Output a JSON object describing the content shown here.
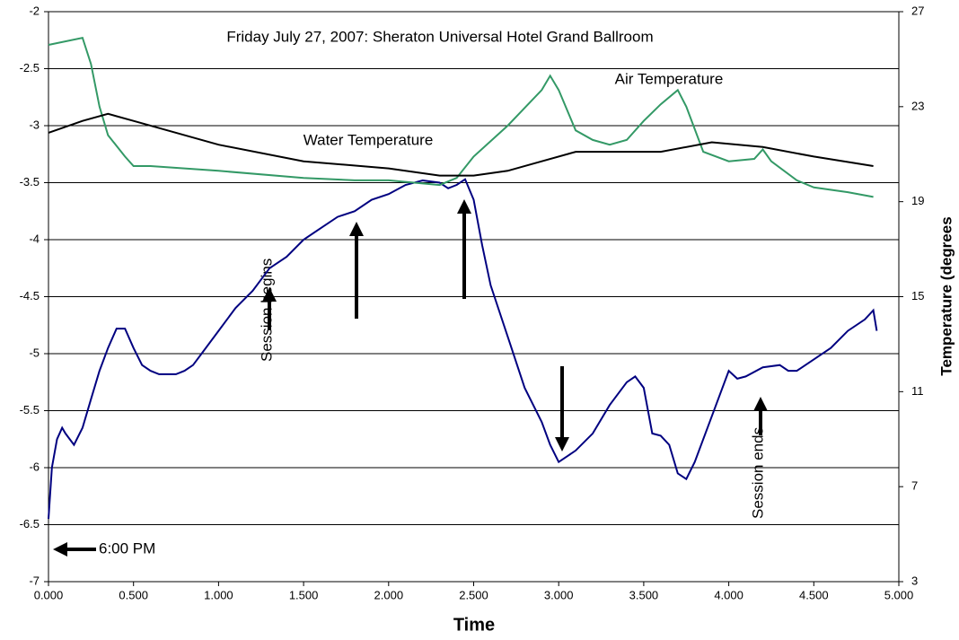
{
  "chart_data": {
    "type": "line",
    "title": "Friday July 27, 2007: Sheraton Universal Hotel Grand Ballroom",
    "x_label": "Time",
    "y2_label": "Temperature (degrees",
    "xlim": [
      0,
      5
    ],
    "xticks": [
      {
        "value": 0,
        "label": "0.000"
      },
      {
        "value": 0.5,
        "label": "0.500"
      },
      {
        "value": 1,
        "label": "1.000"
      },
      {
        "value": 1.5,
        "label": "1.500"
      },
      {
        "value": 2,
        "label": "2.000"
      },
      {
        "value": 2.5,
        "label": "2.500"
      },
      {
        "value": 3,
        "label": "3.000"
      },
      {
        "value": 3.5,
        "label": "3.500"
      },
      {
        "value": 4,
        "label": "4.000"
      },
      {
        "value": 4.5,
        "label": "4.500"
      },
      {
        "value": 5,
        "label": "5.000"
      }
    ],
    "ylim": [
      -7,
      -2
    ],
    "yticks": [
      -7,
      -6.5,
      -6,
      -5.5,
      -5,
      -4.5,
      -4,
      -3.5,
      -3,
      -2.5,
      -2
    ],
    "y2lim": [
      3,
      27
    ],
    "y2ticks": [
      3,
      7,
      11,
      15,
      19,
      23,
      27
    ],
    "grid": true,
    "annotations": [
      "Session begins",
      "Session ends",
      "6:00 PM"
    ],
    "series": [
      {
        "color": "#000080",
        "x": [
          0,
          0.02,
          0.05,
          0.08,
          0.1,
          0.15,
          0.2,
          0.25,
          0.3,
          0.35,
          0.4,
          0.45,
          0.5,
          0.55,
          0.6,
          0.65,
          0.7,
          0.75,
          0.8,
          0.85,
          0.9,
          1.0,
          1.1,
          1.2,
          1.3,
          1.4,
          1.5,
          1.6,
          1.7,
          1.8,
          1.9,
          2.0,
          2.1,
          2.2,
          2.3,
          2.35,
          2.4,
          2.45,
          2.5,
          2.55,
          2.6,
          2.7,
          2.8,
          2.9,
          2.95,
          3.0,
          3.05,
          3.1,
          3.2,
          3.3,
          3.4,
          3.45,
          3.5,
          3.55,
          3.6,
          3.65,
          3.7,
          3.75,
          3.8,
          3.9,
          4.0,
          4.05,
          4.1,
          4.2,
          4.3,
          4.35,
          4.4,
          4.5,
          4.6,
          4.7,
          4.8,
          4.85,
          4.87
        ],
        "values": [
          -6.45,
          -6.0,
          -5.75,
          -5.65,
          -5.7,
          -5.8,
          -5.65,
          -5.4,
          -5.15,
          -4.95,
          -4.78,
          -4.78,
          -4.95,
          -5.1,
          -5.15,
          -5.18,
          -5.18,
          -5.18,
          -5.15,
          -5.1,
          -5.0,
          -4.8,
          -4.6,
          -4.45,
          -4.25,
          -4.15,
          -4.0,
          -3.9,
          -3.8,
          -3.75,
          -3.65,
          -3.6,
          -3.52,
          -3.48,
          -3.5,
          -3.55,
          -3.52,
          -3.47,
          -3.65,
          -4.05,
          -4.4,
          -4.85,
          -5.3,
          -5.6,
          -5.8,
          -5.95,
          -5.9,
          -5.85,
          -5.7,
          -5.45,
          -5.25,
          -5.2,
          -5.3,
          -5.7,
          -5.72,
          -5.8,
          -6.05,
          -6.1,
          -5.95,
          -5.55,
          -5.15,
          -5.22,
          -5.2,
          -5.12,
          -5.1,
          -5.15,
          -5.15,
          -5.05,
          -4.95,
          -4.8,
          -4.7,
          -4.62,
          -4.8
        ]
      },
      {
        "name": "Air Temperature",
        "color": "#339966",
        "axis": "y2",
        "x": [
          0,
          0.2,
          0.25,
          0.3,
          0.35,
          0.45,
          0.5,
          0.6,
          1.0,
          1.5,
          1.8,
          2.0,
          2.3,
          2.4,
          2.5,
          2.7,
          2.9,
          2.95,
          3.0,
          3.1,
          3.2,
          3.3,
          3.4,
          3.5,
          3.6,
          3.7,
          3.75,
          3.85,
          4.0,
          4.15,
          4.2,
          4.25,
          4.4,
          4.5,
          4.7,
          4.85
        ],
        "values": [
          25.6,
          25.9,
          24.8,
          23,
          21.8,
          20.9,
          20.5,
          20.5,
          20.3,
          20,
          19.9,
          19.9,
          19.7,
          20,
          20.9,
          22.2,
          23.7,
          24.3,
          23.7,
          22,
          21.6,
          21.4,
          21.6,
          22.4,
          23.1,
          23.7,
          23,
          21.1,
          20.7,
          20.8,
          21.2,
          20.7,
          19.9,
          19.6,
          19.4,
          19.2
        ]
      },
      {
        "name": "Water Temperature",
        "color": "#000000",
        "axis": "y2",
        "x": [
          0,
          0.2,
          0.35,
          0.5,
          1.0,
          1.5,
          2.0,
          2.3,
          2.5,
          2.7,
          2.9,
          3.1,
          3.3,
          3.6,
          3.9,
          4.2,
          4.5,
          4.85
        ],
        "values": [
          21.9,
          22.4,
          22.7,
          22.4,
          21.4,
          20.7,
          20.4,
          20.1,
          20.1,
          20.3,
          20.7,
          21.1,
          21.1,
          21.1,
          21.5,
          21.3,
          20.9,
          20.5
        ]
      }
    ]
  }
}
